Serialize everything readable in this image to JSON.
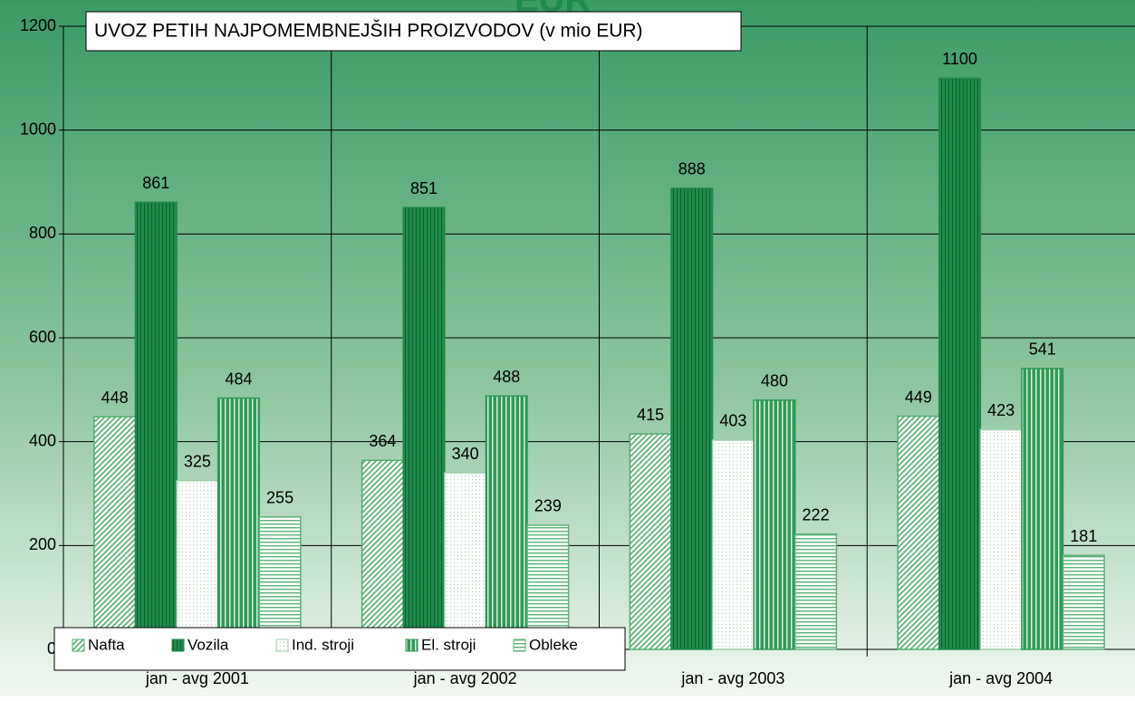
{
  "chart_data": {
    "type": "bar",
    "title": "UVOZ PETIH NAJPOMEMBNEJŠIH PROIZVODOV (v mio EUR)",
    "subtitle": "EUR",
    "categories": [
      "jan - avg 2001",
      "jan - avg 2002",
      "jan - avg 2003",
      "jan - avg 2004"
    ],
    "series": [
      {
        "name": "Nafta",
        "color": "#4fae6e",
        "values": [
          448,
          364,
          415,
          449
        ]
      },
      {
        "name": "Vozila",
        "color": "#1f8a4c",
        "values": [
          861,
          851,
          888,
          1100
        ]
      },
      {
        "name": "Ind. stroji",
        "color": "#9ccfa8",
        "values": [
          325,
          340,
          403,
          423
        ]
      },
      {
        "name": "El. stroji",
        "color": "#2f9a58",
        "values": [
          484,
          488,
          480,
          541
        ]
      },
      {
        "name": "Obleke",
        "color": "#5cb377",
        "values": [
          255,
          239,
          222,
          181
        ]
      }
    ],
    "ylim": [
      0,
      1200
    ],
    "yticks": [
      0,
      200,
      400,
      600,
      800,
      1000,
      1200
    ],
    "grid": true,
    "legend": "bottom-left"
  }
}
